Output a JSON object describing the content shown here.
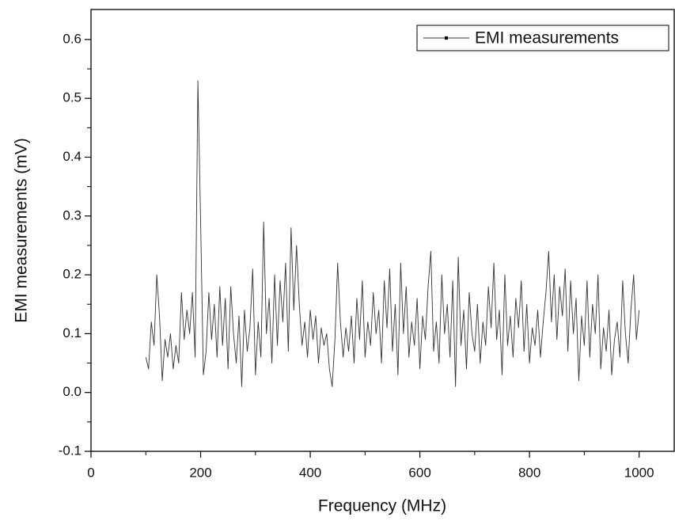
{
  "chart_data": {
    "type": "line",
    "xlabel": "Frequency (MHz)",
    "ylabel": "EMI measurements (mV)",
    "x": [
      100,
      105,
      110,
      115,
      120,
      125,
      130,
      135,
      140,
      145,
      150,
      155,
      160,
      165,
      170,
      175,
      180,
      185,
      190,
      195,
      200,
      205,
      210,
      215,
      220,
      225,
      230,
      235,
      240,
      245,
      250,
      255,
      260,
      265,
      270,
      275,
      280,
      285,
      290,
      295,
      300,
      305,
      310,
      315,
      320,
      325,
      330,
      335,
      340,
      345,
      350,
      355,
      360,
      365,
      370,
      375,
      380,
      385,
      390,
      395,
      400,
      405,
      410,
      415,
      420,
      425,
      430,
      435,
      440,
      445,
      450,
      455,
      460,
      465,
      470,
      475,
      480,
      485,
      490,
      495,
      500,
      505,
      510,
      515,
      520,
      525,
      530,
      535,
      540,
      545,
      550,
      555,
      560,
      565,
      570,
      575,
      580,
      585,
      590,
      595,
      600,
      605,
      610,
      615,
      620,
      625,
      630,
      635,
      640,
      645,
      650,
      655,
      660,
      665,
      670,
      675,
      680,
      685,
      690,
      695,
      700,
      705,
      710,
      715,
      720,
      725,
      730,
      735,
      740,
      745,
      750,
      755,
      760,
      765,
      770,
      775,
      780,
      785,
      790,
      795,
      800,
      805,
      810,
      815,
      820,
      825,
      830,
      835,
      840,
      845,
      850,
      855,
      860,
      865,
      870,
      875,
      880,
      885,
      890,
      895,
      900,
      905,
      910,
      915,
      920,
      925,
      930,
      935,
      940,
      945,
      950,
      955,
      960,
      965,
      970,
      975,
      980,
      985,
      990,
      995,
      1000
    ],
    "series": [
      {
        "name": "EMI measurements",
        "color": "#333333",
        "values": [
          0.06,
          0.04,
          0.12,
          0.08,
          0.2,
          0.13,
          0.02,
          0.09,
          0.06,
          0.1,
          0.04,
          0.08,
          0.05,
          0.17,
          0.09,
          0.14,
          0.1,
          0.17,
          0.06,
          0.53,
          0.29,
          0.03,
          0.07,
          0.17,
          0.09,
          0.15,
          0.06,
          0.18,
          0.08,
          0.16,
          0.04,
          0.18,
          0.1,
          0.05,
          0.13,
          0.01,
          0.14,
          0.07,
          0.11,
          0.21,
          0.03,
          0.12,
          0.06,
          0.29,
          0.1,
          0.16,
          0.05,
          0.2,
          0.08,
          0.19,
          0.12,
          0.22,
          0.07,
          0.28,
          0.14,
          0.25,
          0.15,
          0.08,
          0.12,
          0.06,
          0.14,
          0.09,
          0.13,
          0.05,
          0.11,
          0.08,
          0.1,
          0.04,
          0.01,
          0.09,
          0.22,
          0.12,
          0.06,
          0.11,
          0.07,
          0.13,
          0.05,
          0.16,
          0.09,
          0.19,
          0.06,
          0.12,
          0.08,
          0.17,
          0.1,
          0.14,
          0.05,
          0.19,
          0.11,
          0.21,
          0.07,
          0.15,
          0.03,
          0.22,
          0.1,
          0.18,
          0.06,
          0.12,
          0.08,
          0.16,
          0.04,
          0.13,
          0.09,
          0.18,
          0.24,
          0.07,
          0.12,
          0.05,
          0.2,
          0.1,
          0.15,
          0.06,
          0.19,
          0.01,
          0.23,
          0.08,
          0.14,
          0.04,
          0.17,
          0.1,
          0.07,
          0.15,
          0.05,
          0.12,
          0.08,
          0.18,
          0.11,
          0.22,
          0.09,
          0.14,
          0.03,
          0.2,
          0.08,
          0.13,
          0.06,
          0.16,
          0.11,
          0.19,
          0.07,
          0.15,
          0.05,
          0.11,
          0.08,
          0.14,
          0.06,
          0.12,
          0.17,
          0.24,
          0.12,
          0.2,
          0.09,
          0.18,
          0.13,
          0.21,
          0.07,
          0.19,
          0.1,
          0.16,
          0.02,
          0.13,
          0.08,
          0.19,
          0.06,
          0.15,
          0.1,
          0.2,
          0.04,
          0.11,
          0.07,
          0.14,
          0.03,
          0.09,
          0.12,
          0.06,
          0.19,
          0.1,
          0.05,
          0.14,
          0.2,
          0.09,
          0.14
        ]
      }
    ],
    "xlim": [
      0,
      1064
    ],
    "ylim": [
      -0.1,
      0.651
    ],
    "xticks": [
      0,
      200,
      400,
      600,
      800,
      1000
    ],
    "x_minor_ticks": [
      100,
      300,
      500,
      700,
      900
    ],
    "yticks": [
      -0.1,
      {
        "value": 0,
        "label": "0.0"
      },
      0.1,
      0.2,
      0.3,
      0.4,
      0.5,
      0.6
    ],
    "y_minor_ticks": [
      -0.05,
      0.05,
      0.15,
      0.25,
      0.35,
      0.45,
      0.55
    ],
    "legend": "upper right"
  }
}
